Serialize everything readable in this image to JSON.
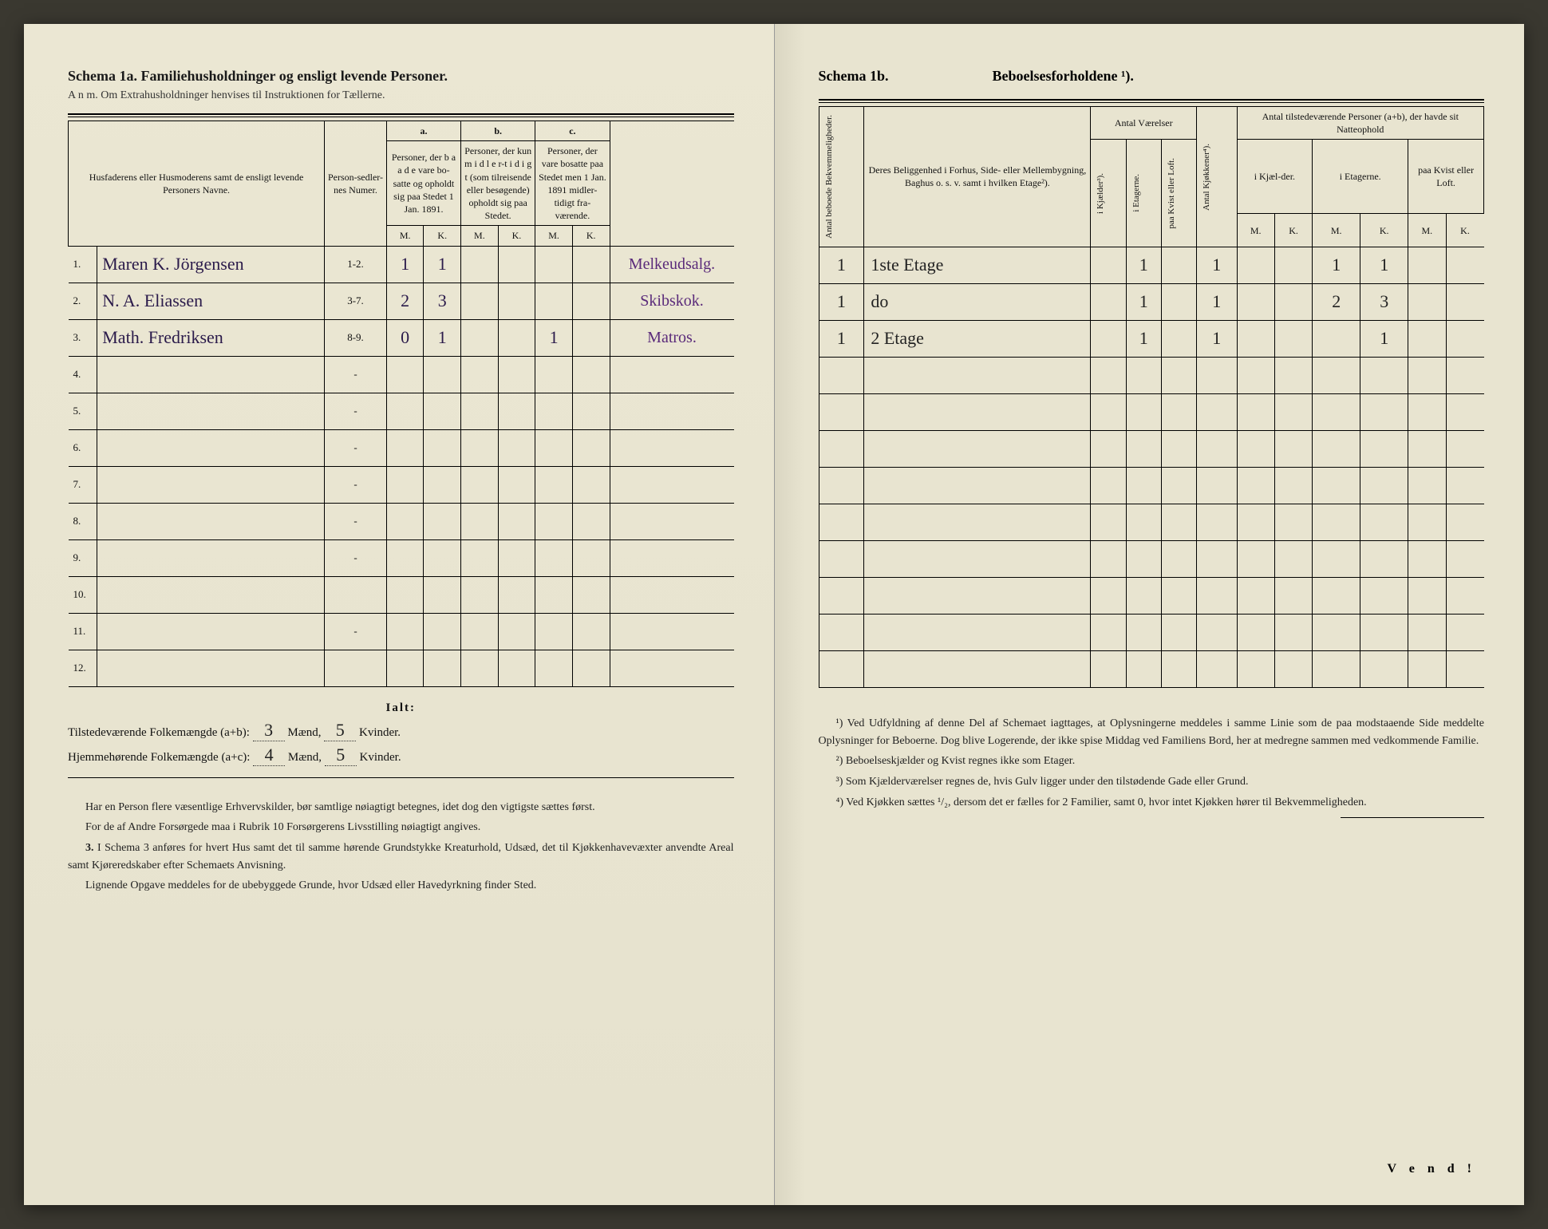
{
  "left": {
    "schema_title": "Schema 1a.  Familiehusholdninger og ensligt levende Personer.",
    "anm": "A n m.  Om Extrahusholdninger henvises til Instruktionen for Tællerne.",
    "col_name": "Husfaderens eller Husmoderens samt de ensligt levende Personers Navne.",
    "col_person": "Person-sedler-nes Numer.",
    "a_top": "a.",
    "a_desc": "Personer, der b a a d e vare bo-satte og opholdt sig paa Stedet 1 Jan. 1891.",
    "b_top": "b.",
    "b_desc": "Personer, der kun m i d l e r-t i d i g t (som tilreisende eller besøgende) opholdt sig paa Stedet.",
    "c_top": "c.",
    "c_desc": "Personer, der vare bosatte paa Stedet men 1 Jan. 1891 midler-tidigt fra-værende.",
    "mk_m": "M.",
    "mk_k": "K.",
    "rows": [
      {
        "num": "1.",
        "name": "Maren K. Jörgensen",
        "ps": "1-2.",
        "aM": "1",
        "aK": "1",
        "bM": "",
        "bK": "",
        "cM": "",
        "cK": "",
        "occ": "Melkeudsalg."
      },
      {
        "num": "2.",
        "name": "N. A. Eliassen",
        "ps": "3-7.",
        "aM": "2",
        "aK": "3",
        "bM": "",
        "bK": "",
        "cM": "",
        "cK": "",
        "occ": "Skibskok."
      },
      {
        "num": "3.",
        "name": "Math. Fredriksen",
        "ps": "8-9.",
        "aM": "0",
        "aK": "1",
        "bM": "",
        "bK": "",
        "cM": "1",
        "cK": "",
        "occ": "Matros."
      },
      {
        "num": "4.",
        "name": "",
        "ps": "-",
        "aM": "",
        "aK": "",
        "bM": "",
        "bK": "",
        "cM": "",
        "cK": "",
        "occ": ""
      },
      {
        "num": "5.",
        "name": "",
        "ps": "-",
        "aM": "",
        "aK": "",
        "bM": "",
        "bK": "",
        "cM": "",
        "cK": "",
        "occ": ""
      },
      {
        "num": "6.",
        "name": "",
        "ps": "-",
        "aM": "",
        "aK": "",
        "bM": "",
        "bK": "",
        "cM": "",
        "cK": "",
        "occ": ""
      },
      {
        "num": "7.",
        "name": "",
        "ps": "-",
        "aM": "",
        "aK": "",
        "bM": "",
        "bK": "",
        "cM": "",
        "cK": "",
        "occ": ""
      },
      {
        "num": "8.",
        "name": "",
        "ps": "-",
        "aM": "",
        "aK": "",
        "bM": "",
        "bK": "",
        "cM": "",
        "cK": "",
        "occ": ""
      },
      {
        "num": "9.",
        "name": "",
        "ps": "-",
        "aM": "",
        "aK": "",
        "bM": "",
        "bK": "",
        "cM": "",
        "cK": "",
        "occ": ""
      },
      {
        "num": "10.",
        "name": "",
        "ps": "",
        "aM": "",
        "aK": "",
        "bM": "",
        "bK": "",
        "cM": "",
        "cK": "",
        "occ": ""
      },
      {
        "num": "11.",
        "name": "",
        "ps": "-",
        "aM": "",
        "aK": "",
        "bM": "",
        "bK": "",
        "cM": "",
        "cK": "",
        "occ": ""
      },
      {
        "num": "12.",
        "name": "",
        "ps": "",
        "aM": "",
        "aK": "",
        "bM": "",
        "bK": "",
        "cM": "",
        "cK": "",
        "occ": ""
      }
    ],
    "ialt": "Ialt:",
    "tilst": "Tilstedeværende Folkemængde (a+b):",
    "hjem": "Hjemmehørende Folkemængde (a+c):",
    "maend": "Mænd,",
    "kvinder": "Kvinder.",
    "tot_a_m": "3",
    "tot_a_k": "5",
    "tot_b_m": "4",
    "tot_b_k": "5",
    "fn1": "Har en Person flere væsentlige Erhvervskilder, bør samtlige nøiagtigt betegnes, idet dog den vigtigste sættes først.",
    "fn2": "For de af Andre Forsørgede maa i Rubrik 10 Forsørgerens Livsstilling nøiagtigt angives.",
    "fn3_num": "3.",
    "fn3": "I Schema 3 anføres for hvert Hus samt det til samme hørende Grundstykke Kreaturhold, Udsæd, det til Kjøkkenhavevæxter anvendte Areal samt Kjøreredskaber efter Schemaets Anvisning.",
    "fn4": "Lignende Opgave meddeles for de ubebyggede Grunde, hvor Udsæd eller Havedyrkning finder Sted."
  },
  "right": {
    "schema_title": "Schema 1b.",
    "heading2": "Beboelsesforholdene ¹).",
    "c1": "Antal beboede Bekvemmeligheder.",
    "c2": "Deres Beliggenhed i Forhus, Side- eller Mellembygning, Baghus o. s. v. samt i hvilken Etage²).",
    "c3h": "Antal Værelser",
    "c3a": "i Kjælder³).",
    "c3b": "i Etagerne.",
    "c3c": "paa Kvist eller Loft.",
    "c4": "Antal Kjøkkener⁴).",
    "c5h": "Antal tilstedeværende Personer (a+b), der havde sit Natteophold",
    "c5a": "i Kjæl-der.",
    "c5b": "i Etagerne.",
    "c5c": "paa Kvist eller Loft.",
    "mk_m": "M.",
    "mk_k": "K.",
    "rows": [
      {
        "c1": "1",
        "c2": "1ste Etage",
        "v1": "",
        "v2": "1",
        "v3": "",
        "kj": "1",
        "p1m": "",
        "p1k": "",
        "p2m": "1",
        "p2k": "1",
        "p3m": "",
        "p3k": ""
      },
      {
        "c1": "1",
        "c2": "do",
        "v1": "",
        "v2": "1",
        "v3": "",
        "kj": "1",
        "p1m": "",
        "p1k": "",
        "p2m": "2",
        "p2k": "3",
        "p3m": "",
        "p3k": ""
      },
      {
        "c1": "1",
        "c2": "2 Etage",
        "v1": "",
        "v2": "1",
        "v3": "",
        "kj": "1",
        "p1m": "",
        "p1k": "",
        "p2m": "",
        "p2k": "1",
        "p3m": "",
        "p3k": ""
      },
      {
        "c1": "",
        "c2": "",
        "v1": "",
        "v2": "",
        "v3": "",
        "kj": "",
        "p1m": "",
        "p1k": "",
        "p2m": "",
        "p2k": "",
        "p3m": "",
        "p3k": ""
      },
      {
        "c1": "",
        "c2": "",
        "v1": "",
        "v2": "",
        "v3": "",
        "kj": "",
        "p1m": "",
        "p1k": "",
        "p2m": "",
        "p2k": "",
        "p3m": "",
        "p3k": ""
      },
      {
        "c1": "",
        "c2": "",
        "v1": "",
        "v2": "",
        "v3": "",
        "kj": "",
        "p1m": "",
        "p1k": "",
        "p2m": "",
        "p2k": "",
        "p3m": "",
        "p3k": ""
      },
      {
        "c1": "",
        "c2": "",
        "v1": "",
        "v2": "",
        "v3": "",
        "kj": "",
        "p1m": "",
        "p1k": "",
        "p2m": "",
        "p2k": "",
        "p3m": "",
        "p3k": ""
      },
      {
        "c1": "",
        "c2": "",
        "v1": "",
        "v2": "",
        "v3": "",
        "kj": "",
        "p1m": "",
        "p1k": "",
        "p2m": "",
        "p2k": "",
        "p3m": "",
        "p3k": ""
      },
      {
        "c1": "",
        "c2": "",
        "v1": "",
        "v2": "",
        "v3": "",
        "kj": "",
        "p1m": "",
        "p1k": "",
        "p2m": "",
        "p2k": "",
        "p3m": "",
        "p3k": ""
      },
      {
        "c1": "",
        "c2": "",
        "v1": "",
        "v2": "",
        "v3": "",
        "kj": "",
        "p1m": "",
        "p1k": "",
        "p2m": "",
        "p2k": "",
        "p3m": "",
        "p3k": ""
      },
      {
        "c1": "",
        "c2": "",
        "v1": "",
        "v2": "",
        "v3": "",
        "kj": "",
        "p1m": "",
        "p1k": "",
        "p2m": "",
        "p2k": "",
        "p3m": "",
        "p3k": ""
      },
      {
        "c1": "",
        "c2": "",
        "v1": "",
        "v2": "",
        "v3": "",
        "kj": "",
        "p1m": "",
        "p1k": "",
        "p2m": "",
        "p2k": "",
        "p3m": "",
        "p3k": ""
      }
    ],
    "rfn1": "¹) Ved Udfyldning af denne Del af Schemaet iagttages, at Oplysningerne meddeles i samme Linie som de paa modstaaende Side meddelte Oplysninger for Beboerne. Dog blive Logerende, der ikke spise Middag ved Familiens Bord, her at medregne sammen med vedkommende Familie.",
    "rfn2": "²) Beboelseskjælder og Kvist regnes ikke som Etager.",
    "rfn3": "³) Som Kjælderværelser regnes de, hvis Gulv ligger under den tilstødende Gade eller Grund.",
    "rfn4": "⁴) Ved Kjøkken sættes ¹/₂, dersom det er fælles for 2 Familier, samt 0, hvor intet Kjøkken hører til Bekvemmeligheden.",
    "vend": "V e n d !"
  },
  "colors": {
    "paper": "#e8e4d0",
    "ink": "#1a1a1a",
    "handwriting": "#2a1a4a",
    "handwriting_purple": "#5a2a7a"
  }
}
